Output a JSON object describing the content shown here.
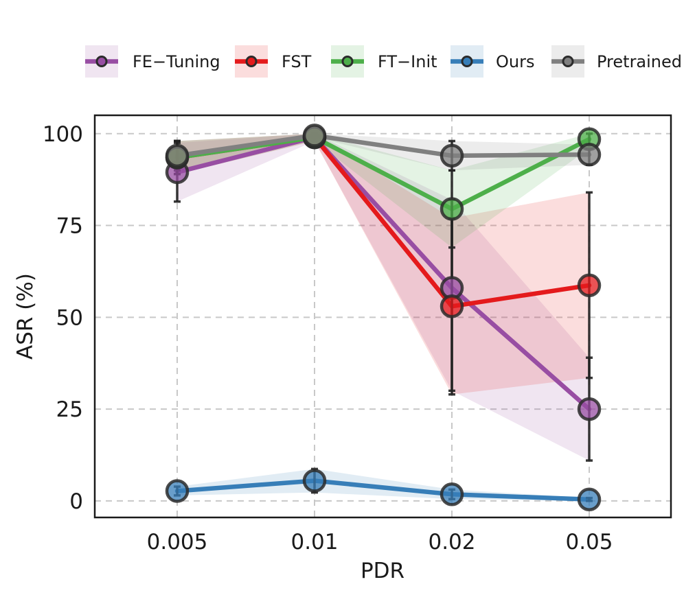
{
  "chart_data": {
    "type": "line",
    "x": [
      "0.005",
      "0.01",
      "0.02",
      "0.05"
    ],
    "xlabel": "PDR",
    "ylabel": "ASR (%)",
    "ylim": [
      -4.5,
      105
    ],
    "yticks": [
      "0",
      "25",
      "50",
      "75",
      "100"
    ],
    "grid": true,
    "legend_position": "top",
    "series": [
      {
        "name": "FE−Tuning",
        "color": "#984ea3",
        "values": [
          89.5,
          99,
          58,
          25
        ],
        "lower": [
          81.5,
          98,
          30,
          11
        ],
        "upper": [
          97.5,
          100,
          82,
          39
        ]
      },
      {
        "name": "FST",
        "color": "#e41a1c",
        "values": [
          93.5,
          99,
          53,
          58.7
        ],
        "lower": [
          89,
          98,
          29,
          33.5
        ],
        "upper": [
          98,
          100,
          77,
          84
        ]
      },
      {
        "name": "FT−Init",
        "color": "#4daf4a",
        "values": [
          93.5,
          99,
          79.5,
          98.5
        ],
        "lower": [
          89,
          98,
          69,
          96
        ],
        "upper": [
          98,
          100,
          90,
          100
        ]
      },
      {
        "name": "Ours",
        "color": "#377eb8",
        "values": [
          2.7,
          5.5,
          1.8,
          0.4
        ],
        "lower": [
          1.5,
          2.3,
          0.5,
          0
        ],
        "upper": [
          3.9,
          8.7,
          3.1,
          0.8
        ]
      },
      {
        "name": "Pretrained",
        "color": "#808080",
        "values": [
          94,
          99.5,
          94,
          94.3
        ],
        "lower": [
          90,
          99,
          90,
          91.5
        ],
        "upper": [
          98,
          100,
          98,
          97
        ]
      }
    ]
  }
}
